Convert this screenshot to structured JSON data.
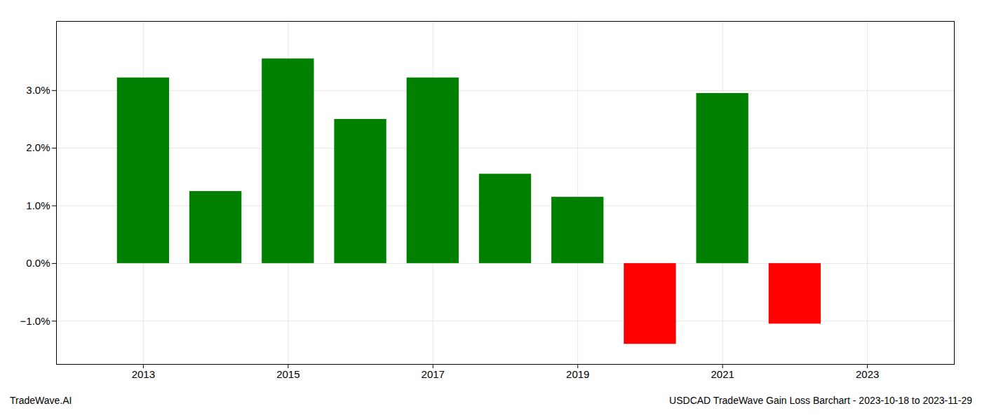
{
  "chart_data": {
    "type": "bar",
    "x": [
      2013,
      2014,
      2015,
      2016,
      2017,
      2018,
      2019,
      2020,
      2021,
      2022
    ],
    "values": [
      3.22,
      1.25,
      3.55,
      2.5,
      3.22,
      1.55,
      1.15,
      -1.4,
      2.95,
      -1.05
    ],
    "colors": [
      "#008000",
      "#008000",
      "#008000",
      "#008000",
      "#008000",
      "#008000",
      "#008000",
      "#ff0000",
      "#008000",
      "#ff0000"
    ],
    "xlim": [
      2011.8,
      2024.2
    ],
    "xticks": [
      2013,
      2015,
      2017,
      2019,
      2021,
      2023
    ],
    "ylim": [
      -1.75,
      4.2
    ],
    "yticks": [
      {
        "value": -1.0,
        "label": "−1.0%"
      },
      {
        "value": 0.0,
        "label": "0.0%"
      },
      {
        "value": 1.0,
        "label": "1.0%"
      },
      {
        "value": 2.0,
        "label": "2.0%"
      },
      {
        "value": 3.0,
        "label": "3.0%"
      }
    ],
    "grid": true,
    "annotations": [
      "TradeWave.AI",
      "USDCAD TradeWave Gain Loss Barchart - 2023-10-18 to 2023-11-29"
    ]
  }
}
